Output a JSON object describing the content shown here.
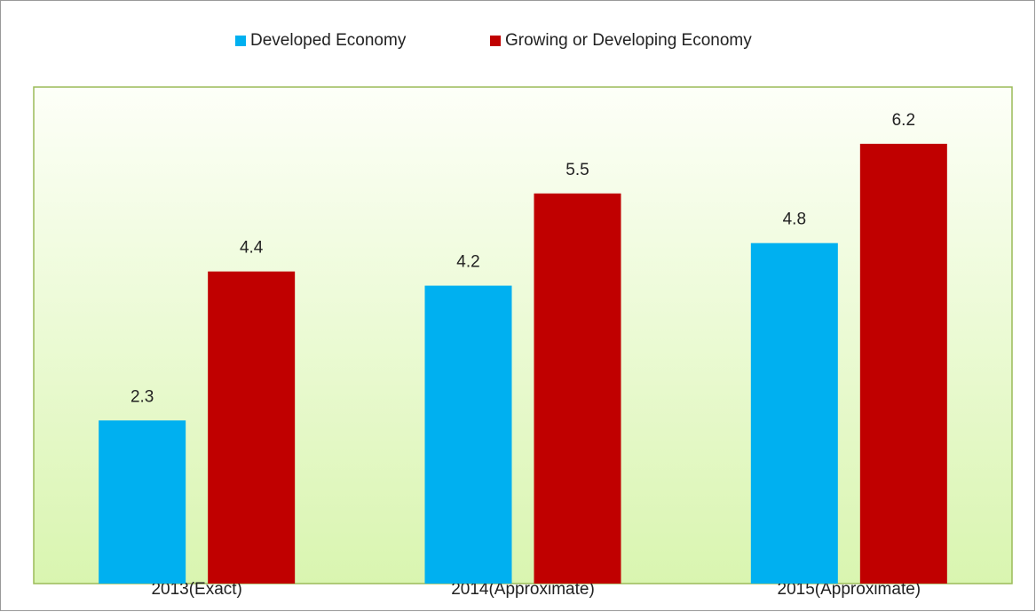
{
  "chart_data": {
    "type": "bar",
    "categories": [
      "2013(Exact)",
      "2014(Approximate)",
      "2015(Approximate)"
    ],
    "series": [
      {
        "name": "Developed Economy",
        "color": "#00b0f0",
        "values": [
          2.3,
          4.2,
          4.8
        ]
      },
      {
        "name": "Growing or Developing Economy",
        "color": "#c00000",
        "values": [
          4.4,
          5.5,
          6.2
        ]
      }
    ],
    "ylim": [
      0,
      7
    ],
    "legend": "top"
  }
}
